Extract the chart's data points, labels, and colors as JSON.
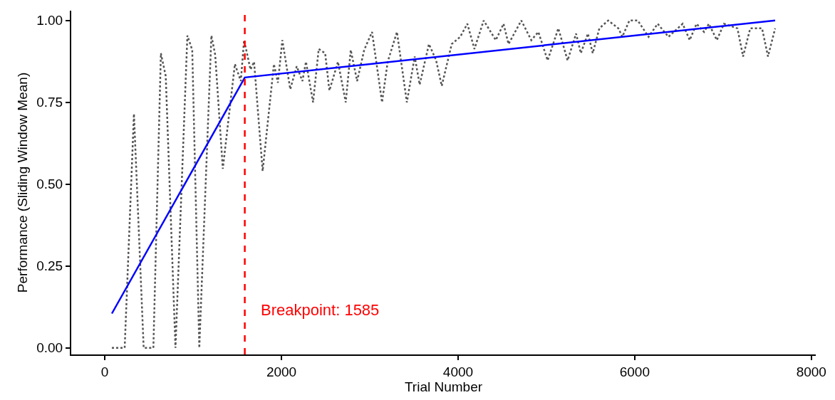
{
  "chart_data": {
    "type": "line",
    "xlabel": "Trial Number",
    "ylabel": "Performance (Sliding Window Mean)",
    "xlim": [
      -380,
      8050
    ],
    "ylim": [
      -0.02,
      1.03
    ],
    "xticks": [
      0,
      2000,
      4000,
      6000,
      8000
    ],
    "yticks": [
      {
        "value": 0,
        "label": "0.00"
      },
      {
        "value": 0.25,
        "label": "0.25"
      },
      {
        "value": 0.5,
        "label": "0.50"
      },
      {
        "value": 0.75,
        "label": "0.75"
      },
      {
        "value": 1,
        "label": "1.00"
      }
    ],
    "grid": false,
    "marker": "none",
    "series": [
      {
        "color": "#555555",
        "line_style": "dotted",
        "x": [
          80,
          225,
          330,
          440,
          550,
          635,
          690,
          800,
          935,
          990,
          1070,
          1207,
          1250,
          1336,
          1473,
          1540,
          1577,
          1650,
          1690,
          1787,
          1915,
          1960,
          2010,
          2100,
          2173,
          2237,
          2278,
          2358,
          2422,
          2495,
          2543,
          2640,
          2728,
          2785,
          2857,
          2937,
          3026,
          3139,
          3203,
          3308,
          3420,
          3509,
          3565,
          3670,
          3750,
          3815,
          3928,
          4024,
          4105,
          4185,
          4290,
          4427,
          4515,
          4571,
          4716,
          4829,
          4909,
          5014,
          5135,
          5240,
          5336,
          5390,
          5470,
          5525,
          5600,
          5700,
          5815,
          5860,
          5940,
          6034,
          6157,
          6260,
          6382,
          6543,
          6623,
          6700,
          6785,
          6840,
          6930,
          7010,
          7163,
          7227,
          7308,
          7442,
          7509,
          7590
        ],
        "values": [
          0,
          0,
          0.715,
          0,
          0,
          0.9,
          0.83,
          0,
          0.954,
          0.91,
          0,
          0.954,
          0.895,
          0.547,
          0.867,
          0.815,
          0.94,
          0.85,
          0.874,
          0.54,
          0.867,
          0.81,
          0.94,
          0.79,
          0.86,
          0.815,
          0.874,
          0.75,
          0.913,
          0.9,
          0.786,
          0.874,
          0.75,
          0.91,
          0.815,
          0.91,
          0.965,
          0.75,
          0.874,
          0.965,
          0.75,
          0.89,
          0.804,
          0.928,
          0.88,
          0.8,
          0.928,
          0.95,
          0.99,
          0.913,
          1,
          0.94,
          0.99,
          0.928,
          1,
          0.94,
          0.965,
          0.878,
          0.976,
          0.878,
          0.96,
          0.9,
          0.96,
          0.9,
          0.976,
          1,
          0.976,
          0.95,
          1,
          1,
          0.95,
          0.99,
          0.95,
          0.99,
          0.94,
          0.99,
          0.965,
          0.99,
          0.94,
          0.99,
          0.976,
          0.89,
          0.976,
          0.976,
          0.89,
          0.976
        ]
      },
      {
        "color": "#0000ff",
        "line_style": "solid",
        "x": [
          80,
          1585,
          7590
        ],
        "values": [
          0.105,
          0.826,
          1.0
        ]
      }
    ],
    "ref_lines": [
      {
        "axis": "x",
        "value": 1585,
        "label": "Breakpoint: 1585",
        "color": "#ff0000",
        "line_style": "dashed"
      }
    ]
  }
}
